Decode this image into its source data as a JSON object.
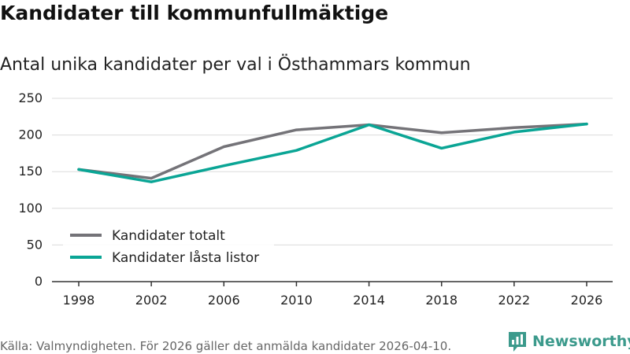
{
  "header": {
    "title": "Kandidater till kommunfullmäktige",
    "subtitle": "Antal unika kandidater per val i Östhammars kommun"
  },
  "footer": {
    "source": "Källa: Valmyndigheten. För 2026 gäller det anmälda kandidater 2026-04-10.",
    "brand": "Newsworthy"
  },
  "colors": {
    "totalt": "#747378",
    "lasta": "#0aa595",
    "grid": "#dcdcdc",
    "axis": "#333333",
    "brand": "#3c9a8c"
  },
  "chart_data": {
    "type": "line",
    "title": "Antal unika kandidater per val i Östhammars kommun",
    "xlabel": "",
    "ylabel": "",
    "x": [
      1998,
      2002,
      2006,
      2010,
      2014,
      2018,
      2022,
      2026
    ],
    "x_ticks": [
      "1998",
      "2002",
      "2006",
      "2010",
      "2014",
      "2018",
      "2022",
      "2026"
    ],
    "y_ticks": [
      0,
      50,
      100,
      150,
      200,
      250
    ],
    "y_tick_labels": [
      "0",
      "50",
      "100",
      "150",
      "200",
      "250"
    ],
    "ylim": [
      0,
      250
    ],
    "grid": true,
    "legend_position": "bottom-left",
    "series": [
      {
        "name": "Kandidater totalt",
        "color_key": "totalt",
        "values": [
          153,
          141,
          184,
          207,
          214,
          203,
          210,
          215
        ]
      },
      {
        "name": "Kandidater låsta listor",
        "color_key": "lasta",
        "values": [
          153,
          136,
          158,
          179,
          214,
          182,
          204,
          215
        ]
      }
    ]
  }
}
